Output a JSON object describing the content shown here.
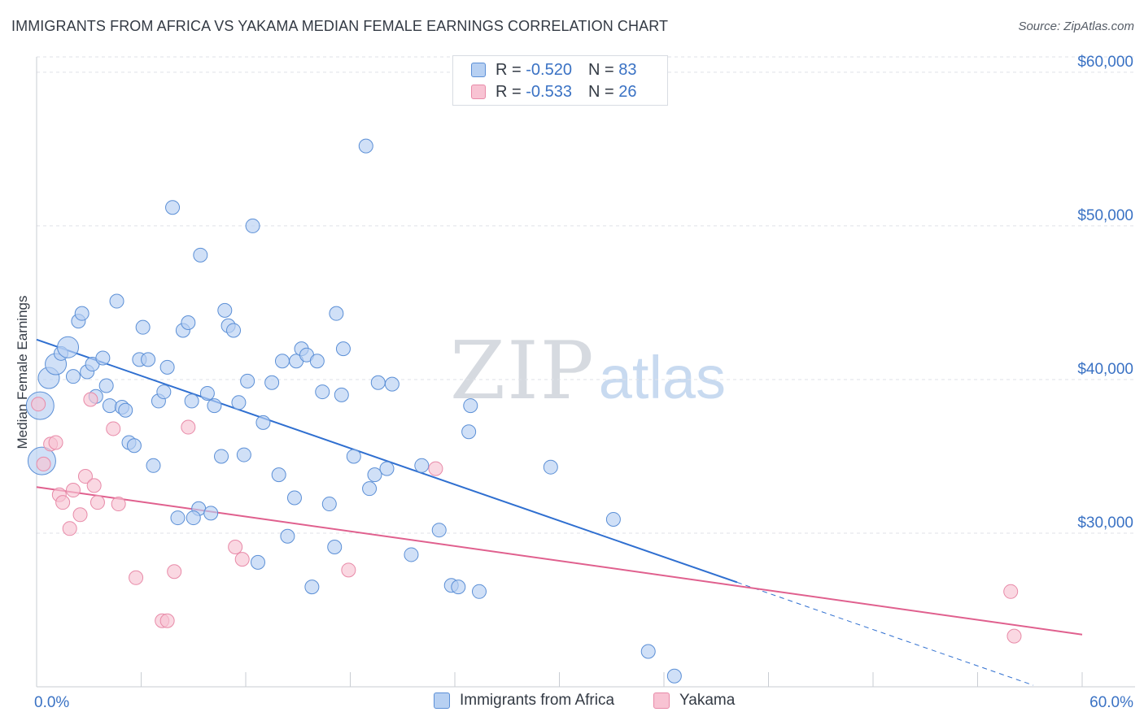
{
  "title": "IMMIGRANTS FROM AFRICA VS YAKAMA MEDIAN FEMALE EARNINGS CORRELATION CHART",
  "source": "Source: ZipAtlas.com",
  "watermark": {
    "zip": "ZIP",
    "atlas": "atlas"
  },
  "legend": {
    "rows": [
      {
        "r_label": "R =",
        "r_value": "-0.520",
        "n_label": "N =",
        "n_value": "83"
      },
      {
        "r_label": "R =",
        "r_value": "-0.533",
        "n_label": "N =",
        "n_value": "26"
      }
    ]
  },
  "colors": {
    "africa_fill": "#b7d0f2",
    "africa_stroke": "#5b8fd6",
    "africa_line": "#2f6fd0",
    "yakama_fill": "#f8c3d3",
    "yakama_stroke": "#e88aa8",
    "yakama_line": "#e0608e",
    "tick_text": "#3a72c4",
    "grid": "#dfe2e7"
  },
  "chart_data": {
    "type": "scatter",
    "title": "IMMIGRANTS FROM AFRICA VS YAKAMA MEDIAN FEMALE EARNINGS CORRELATION CHART",
    "xlabel": "",
    "ylabel": "Median Female Earnings",
    "xlim": [
      0,
      60
    ],
    "ylim": [
      20000,
      61000
    ],
    "y_ticks": [
      30000,
      40000,
      50000,
      60000
    ],
    "y_tick_labels": [
      "$30,000",
      "$40,000",
      "$50,000",
      "$60,000"
    ],
    "x_tick_labels": [
      "0.0%",
      "60.0%"
    ],
    "grid": true,
    "legend_position": "top-center",
    "series": [
      {
        "name": "Immigrants from Africa",
        "color": "#5b8fd6",
        "r": -0.52,
        "n": 83,
        "trend": {
          "x": [
            0,
            40.2
          ],
          "y": [
            42600,
            26800
          ],
          "extended_to": [
            57.2,
            20100
          ]
        },
        "points": [
          {
            "x": 0.2,
            "y": 38300,
            "s": 3
          },
          {
            "x": 0.3,
            "y": 34700,
            "s": 3
          },
          {
            "x": 0.7,
            "y": 40100,
            "s": 2
          },
          {
            "x": 1.1,
            "y": 41000,
            "s": 2
          },
          {
            "x": 1.4,
            "y": 41700,
            "s": 1
          },
          {
            "x": 1.8,
            "y": 42100,
            "s": 2
          },
          {
            "x": 2.1,
            "y": 40200,
            "s": 1
          },
          {
            "x": 2.4,
            "y": 43800,
            "s": 1
          },
          {
            "x": 2.6,
            "y": 44300,
            "s": 1
          },
          {
            "x": 2.9,
            "y": 40500,
            "s": 1
          },
          {
            "x": 3.2,
            "y": 41000,
            "s": 1
          },
          {
            "x": 3.4,
            "y": 38900,
            "s": 1
          },
          {
            "x": 3.8,
            "y": 41400,
            "s": 1
          },
          {
            "x": 4.0,
            "y": 39600,
            "s": 1
          },
          {
            "x": 4.2,
            "y": 38300,
            "s": 1
          },
          {
            "x": 4.6,
            "y": 45100,
            "s": 1
          },
          {
            "x": 4.9,
            "y": 38200,
            "s": 1
          },
          {
            "x": 5.1,
            "y": 38000,
            "s": 1
          },
          {
            "x": 5.3,
            "y": 35900,
            "s": 1
          },
          {
            "x": 5.6,
            "y": 35700,
            "s": 1
          },
          {
            "x": 5.9,
            "y": 41300,
            "s": 1
          },
          {
            "x": 6.1,
            "y": 43400,
            "s": 1
          },
          {
            "x": 6.4,
            "y": 41300,
            "s": 1
          },
          {
            "x": 6.7,
            "y": 34400,
            "s": 1
          },
          {
            "x": 7.0,
            "y": 38600,
            "s": 1
          },
          {
            "x": 7.3,
            "y": 39200,
            "s": 1
          },
          {
            "x": 7.5,
            "y": 40800,
            "s": 1
          },
          {
            "x": 7.8,
            "y": 51200,
            "s": 1
          },
          {
            "x": 8.1,
            "y": 31000,
            "s": 1
          },
          {
            "x": 8.4,
            "y": 43200,
            "s": 1
          },
          {
            "x": 8.7,
            "y": 43700,
            "s": 1
          },
          {
            "x": 8.9,
            "y": 38600,
            "s": 1
          },
          {
            "x": 9.3,
            "y": 31600,
            "s": 1
          },
          {
            "x": 9.4,
            "y": 48100,
            "s": 1
          },
          {
            "x": 9.8,
            "y": 39100,
            "s": 1
          },
          {
            "x": 10.0,
            "y": 31300,
            "s": 1
          },
          {
            "x": 10.2,
            "y": 38300,
            "s": 1
          },
          {
            "x": 10.6,
            "y": 35000,
            "s": 1
          },
          {
            "x": 10.8,
            "y": 44500,
            "s": 1
          },
          {
            "x": 11.0,
            "y": 43500,
            "s": 1
          },
          {
            "x": 11.3,
            "y": 43200,
            "s": 1
          },
          {
            "x": 11.6,
            "y": 38500,
            "s": 1
          },
          {
            "x": 11.9,
            "y": 35100,
            "s": 1
          },
          {
            "x": 12.1,
            "y": 39900,
            "s": 1
          },
          {
            "x": 12.4,
            "y": 50000,
            "s": 1
          },
          {
            "x": 12.7,
            "y": 28100,
            "s": 1
          },
          {
            "x": 13.0,
            "y": 37200,
            "s": 1
          },
          {
            "x": 13.5,
            "y": 39800,
            "s": 1
          },
          {
            "x": 13.9,
            "y": 33800,
            "s": 1
          },
          {
            "x": 14.1,
            "y": 41200,
            "s": 1
          },
          {
            "x": 14.4,
            "y": 29800,
            "s": 1
          },
          {
            "x": 14.8,
            "y": 32300,
            "s": 1
          },
          {
            "x": 14.9,
            "y": 41200,
            "s": 1
          },
          {
            "x": 15.2,
            "y": 42000,
            "s": 1
          },
          {
            "x": 15.5,
            "y": 41600,
            "s": 1
          },
          {
            "x": 15.8,
            "y": 26500,
            "s": 1
          },
          {
            "x": 16.1,
            "y": 41200,
            "s": 1
          },
          {
            "x": 16.4,
            "y": 39200,
            "s": 1
          },
          {
            "x": 16.8,
            "y": 31900,
            "s": 1
          },
          {
            "x": 17.1,
            "y": 29100,
            "s": 1
          },
          {
            "x": 17.2,
            "y": 44300,
            "s": 1
          },
          {
            "x": 17.5,
            "y": 39000,
            "s": 1
          },
          {
            "x": 17.6,
            "y": 42000,
            "s": 1
          },
          {
            "x": 18.2,
            "y": 35000,
            "s": 1
          },
          {
            "x": 18.9,
            "y": 55200,
            "s": 1
          },
          {
            "x": 19.1,
            "y": 32900,
            "s": 1
          },
          {
            "x": 19.4,
            "y": 33800,
            "s": 1
          },
          {
            "x": 19.6,
            "y": 39800,
            "s": 1
          },
          {
            "x": 20.1,
            "y": 34200,
            "s": 1
          },
          {
            "x": 20.4,
            "y": 39700,
            "s": 1
          },
          {
            "x": 21.5,
            "y": 28600,
            "s": 1
          },
          {
            "x": 22.1,
            "y": 34400,
            "s": 1
          },
          {
            "x": 23.1,
            "y": 30200,
            "s": 1
          },
          {
            "x": 23.8,
            "y": 26600,
            "s": 1
          },
          {
            "x": 24.2,
            "y": 26500,
            "s": 1
          },
          {
            "x": 24.8,
            "y": 36600,
            "s": 1
          },
          {
            "x": 24.9,
            "y": 38300,
            "s": 1
          },
          {
            "x": 25.4,
            "y": 26200,
            "s": 1
          },
          {
            "x": 29.5,
            "y": 34300,
            "s": 1
          },
          {
            "x": 33.1,
            "y": 30900,
            "s": 1
          },
          {
            "x": 35.1,
            "y": 22300,
            "s": 1
          },
          {
            "x": 36.6,
            "y": 20700,
            "s": 1
          },
          {
            "x": 9.0,
            "y": 31000,
            "s": 1
          }
        ]
      },
      {
        "name": "Yakama",
        "color": "#e88aa8",
        "r": -0.533,
        "n": 26,
        "trend": {
          "x": [
            0,
            60
          ],
          "y": [
            33000,
            23400
          ]
        },
        "points": [
          {
            "x": 0.1,
            "y": 38400,
            "s": 1
          },
          {
            "x": 0.4,
            "y": 34500,
            "s": 1
          },
          {
            "x": 0.8,
            "y": 35800,
            "s": 1
          },
          {
            "x": 1.1,
            "y": 35900,
            "s": 1
          },
          {
            "x": 1.3,
            "y": 32500,
            "s": 1
          },
          {
            "x": 1.5,
            "y": 32000,
            "s": 1
          },
          {
            "x": 1.9,
            "y": 30300,
            "s": 1
          },
          {
            "x": 2.1,
            "y": 32800,
            "s": 1
          },
          {
            "x": 2.5,
            "y": 31200,
            "s": 1
          },
          {
            "x": 2.8,
            "y": 33700,
            "s": 1
          },
          {
            "x": 3.1,
            "y": 38700,
            "s": 1
          },
          {
            "x": 3.3,
            "y": 33100,
            "s": 1
          },
          {
            "x": 3.5,
            "y": 32000,
            "s": 1
          },
          {
            "x": 4.4,
            "y": 36800,
            "s": 1
          },
          {
            "x": 4.7,
            "y": 31900,
            "s": 1
          },
          {
            "x": 5.7,
            "y": 27100,
            "s": 1
          },
          {
            "x": 7.2,
            "y": 24300,
            "s": 1
          },
          {
            "x": 7.5,
            "y": 24300,
            "s": 1
          },
          {
            "x": 7.9,
            "y": 27500,
            "s": 1
          },
          {
            "x": 8.7,
            "y": 36900,
            "s": 1
          },
          {
            "x": 11.4,
            "y": 29100,
            "s": 1
          },
          {
            "x": 11.8,
            "y": 28300,
            "s": 1
          },
          {
            "x": 17.9,
            "y": 27600,
            "s": 1
          },
          {
            "x": 22.9,
            "y": 34200,
            "s": 1
          },
          {
            "x": 55.9,
            "y": 26200,
            "s": 1
          },
          {
            "x": 56.1,
            "y": 23300,
            "s": 1
          }
        ]
      }
    ]
  }
}
